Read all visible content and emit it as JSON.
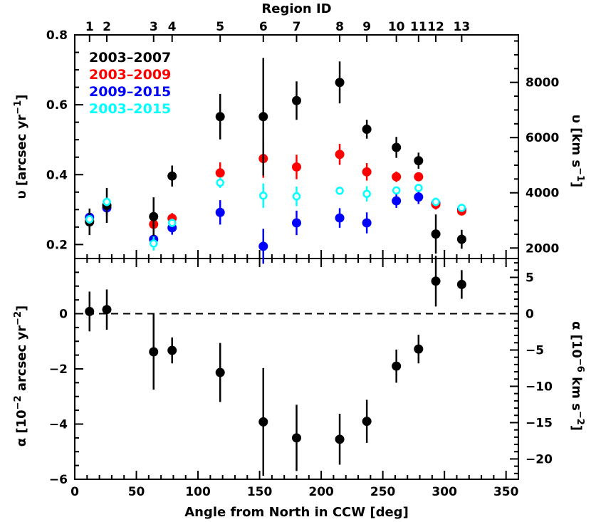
{
  "chart_data": [
    {
      "type": "scatter",
      "panel": "top",
      "top_axis_label": "Region ID",
      "region_ids": [
        "1",
        "2",
        "3",
        "4",
        "5",
        "6",
        "7",
        "8",
        "9",
        "10",
        "11",
        "12",
        "13"
      ],
      "region_angles": [
        12,
        26,
        64,
        79,
        118,
        153,
        180,
        215,
        237,
        261,
        279,
        293,
        314
      ],
      "ylabel": "υ [arcsec yr⁻¹]",
      "ylabel_parts": {
        "prefix": "υ [arcsec yr",
        "sup": "−1",
        "suffix": "]"
      },
      "right_ylabel_parts": {
        "prefix": "υ [km s",
        "sup": "−1",
        "suffix": "]"
      },
      "xlim": [
        0,
        360
      ],
      "ylim": [
        0.16,
        0.8
      ],
      "right_ylim": [
        1620,
        9720
      ],
      "y_ticks": [
        "0.2",
        "0.4",
        "0.6",
        "0.8"
      ],
      "y_tick_values": [
        0.2,
        0.4,
        0.6,
        0.8
      ],
      "right_ticks": [
        "2000",
        "4000",
        "6000",
        "8000"
      ],
      "right_tick_values": [
        2000,
        4000,
        6000,
        8000
      ],
      "legend_placement": "top-left",
      "series": [
        {
          "name": "2003–2007",
          "color": "#000000",
          "marker": "filled",
          "x": [
            12,
            26,
            64,
            79,
            118,
            153,
            180,
            215,
            237,
            261,
            279,
            293,
            314
          ],
          "y": [
            0.265,
            0.312,
            0.28,
            0.396,
            0.566,
            0.566,
            0.612,
            0.664,
            0.53,
            0.478,
            0.44,
            0.23,
            0.215
          ],
          "err": [
            0.038,
            0.05,
            0.055,
            0.03,
            0.065,
            0.168,
            0.055,
            0.06,
            0.027,
            0.03,
            0.023,
            0.056,
            0.027
          ]
        },
        {
          "name": "2003–2009",
          "color": "#ff0000",
          "marker": "filled",
          "x": [
            12,
            26,
            64,
            79,
            118,
            153,
            180,
            215,
            237,
            261,
            279,
            293,
            314
          ],
          "y": [
            0.268,
            0.312,
            0.258,
            0.275,
            0.405,
            0.446,
            0.422,
            0.458,
            0.408,
            0.394,
            0.394,
            0.315,
            0.296
          ],
          "err": [
            0.02,
            0.02,
            0.025,
            0.015,
            0.03,
            0.055,
            0.035,
            0.03,
            0.025,
            0.015,
            0.01,
            0.015,
            0.012
          ]
        },
        {
          "name": "2009–2015",
          "color": "#0000ff",
          "marker": "filled",
          "x": [
            12,
            26,
            64,
            79,
            118,
            153,
            180,
            215,
            237,
            261,
            279,
            293,
            314
          ],
          "y": [
            0.278,
            0.305,
            0.215,
            0.248,
            0.292,
            0.195,
            0.262,
            0.276,
            0.262,
            0.325,
            0.336,
            0.318,
            0.3
          ],
          "err": [
            0.015,
            0.02,
            0.025,
            0.02,
            0.035,
            0.05,
            0.035,
            0.028,
            0.03,
            0.02,
            0.02,
            0.015,
            0.012
          ]
        },
        {
          "name": "2003–2015",
          "color": "#00ffff",
          "marker": "open",
          "x": [
            12,
            26,
            64,
            79,
            118,
            153,
            180,
            215,
            237,
            261,
            279,
            293,
            314
          ],
          "y": [
            0.272,
            0.322,
            0.203,
            0.262,
            0.377,
            0.34,
            0.338,
            0.354,
            0.345,
            0.355,
            0.362,
            0.322,
            0.305
          ],
          "err": [
            0.012,
            0.012,
            0.02,
            0.012,
            0.015,
            0.035,
            0.028,
            0.01,
            0.022,
            0.01,
            0.01,
            0.012,
            0.01
          ]
        }
      ]
    },
    {
      "type": "scatter",
      "panel": "bottom",
      "xlabel": "Angle from North in CCW [deg]",
      "ylabel": "α [10⁻² arcsec yr⁻²]",
      "ylabel_parts": {
        "prefix": "α [10",
        "sup": "−2",
        "middle": " arcsec yr",
        "sup2": "−2",
        "suffix": "]"
      },
      "right_ylabel_parts": {
        "prefix": "α [10",
        "sup": "−6",
        "middle": " km s",
        "sup2": "−2",
        "suffix": "]"
      },
      "xlim": [
        0,
        360
      ],
      "ylim": [
        -6,
        2
      ],
      "right_ylim": [
        -22.8,
        7.6
      ],
      "x_ticks": [
        "0",
        "50",
        "100",
        "150",
        "200",
        "250",
        "300",
        "350"
      ],
      "x_tick_values": [
        0,
        50,
        100,
        150,
        200,
        250,
        300,
        350
      ],
      "y_ticks": [
        "−6",
        "−4",
        "−2",
        "0"
      ],
      "y_tick_values": [
        -6,
        -4,
        -2,
        0
      ],
      "right_ticks": [
        "−20",
        "−15",
        "−10",
        "−5",
        "0",
        "5"
      ],
      "right_tick_values": [
        -20,
        -15,
        -10,
        -5,
        0,
        5
      ],
      "zero_line": true,
      "series": [
        {
          "color": "#000000",
          "marker": "filled",
          "x": [
            12,
            26,
            64,
            79,
            118,
            153,
            180,
            215,
            237,
            261,
            279,
            293,
            314
          ],
          "y": [
            0.08,
            0.15,
            -1.38,
            -1.33,
            -2.13,
            -3.92,
            -4.5,
            -4.55,
            -3.9,
            -1.9,
            -1.28,
            1.18,
            1.06
          ],
          "err": [
            0.72,
            0.73,
            1.37,
            0.47,
            1.07,
            1.95,
            1.2,
            0.92,
            0.78,
            0.6,
            0.52,
            0.92,
            0.52
          ]
        }
      ]
    }
  ]
}
